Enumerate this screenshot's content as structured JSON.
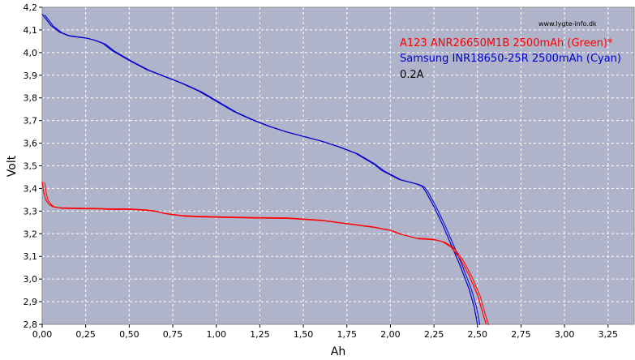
{
  "chart_data": {
    "type": "line",
    "xlabel": "Ah",
    "ylabel": "Volt",
    "xlim": [
      0,
      3.4
    ],
    "ylim": [
      2.8,
      4.2
    ],
    "xticks": [
      0.0,
      0.25,
      0.5,
      0.75,
      1.0,
      1.25,
      1.5,
      1.75,
      2.0,
      2.25,
      2.5,
      2.75,
      3.0,
      3.25
    ],
    "xtick_labels": [
      "0,00",
      "0,25",
      "0,50",
      "0,75",
      "1,00",
      "1,25",
      "1,50",
      "1,75",
      "2,00",
      "2,25",
      "2,50",
      "2,75",
      "3,00",
      "3,25"
    ],
    "yticks": [
      2.8,
      2.9,
      3.0,
      3.1,
      3.2,
      3.3,
      3.4,
      3.5,
      3.6,
      3.7,
      3.8,
      3.9,
      4.0,
      4.1,
      4.2
    ],
    "ytick_labels": [
      "2,8",
      "2,9",
      "3,0",
      "3,1",
      "3,2",
      "3,3",
      "3,4",
      "3,5",
      "3,6",
      "3,7",
      "3,8",
      "3,9",
      "4,0",
      "4,1",
      "4,2"
    ],
    "grid": true,
    "background": "#b0b4ca",
    "watermark": "www.lygte-info.dk",
    "legend": [
      {
        "text": "A123 ANR26650M1B 2500mAh (Green)*",
        "color": "#ff0000"
      },
      {
        "text": "Samsung INR18650-25R 2500mAh (Cyan)",
        "color": "#0000cc"
      },
      {
        "text": "0.2A",
        "color": "#000000"
      }
    ],
    "series": [
      {
        "color": "#0000cc",
        "points": [
          [
            0.0,
            4.17
          ],
          [
            0.02,
            4.15
          ],
          [
            0.05,
            4.12
          ],
          [
            0.1,
            4.09
          ],
          [
            0.15,
            4.075
          ],
          [
            0.2,
            4.07
          ],
          [
            0.25,
            4.065
          ],
          [
            0.3,
            4.055
          ],
          [
            0.35,
            4.04
          ],
          [
            0.4,
            4.01
          ],
          [
            0.5,
            3.965
          ],
          [
            0.6,
            3.925
          ],
          [
            0.7,
            3.895
          ],
          [
            0.8,
            3.865
          ],
          [
            0.9,
            3.83
          ],
          [
            1.0,
            3.785
          ],
          [
            1.1,
            3.74
          ],
          [
            1.2,
            3.705
          ],
          [
            1.3,
            3.675
          ],
          [
            1.4,
            3.65
          ],
          [
            1.5,
            3.63
          ],
          [
            1.6,
            3.61
          ],
          [
            1.7,
            3.585
          ],
          [
            1.8,
            3.555
          ],
          [
            1.9,
            3.51
          ],
          [
            1.95,
            3.48
          ],
          [
            2.0,
            3.46
          ],
          [
            2.05,
            3.44
          ],
          [
            2.1,
            3.43
          ],
          [
            2.15,
            3.42
          ],
          [
            2.18,
            3.41
          ],
          [
            2.2,
            3.39
          ],
          [
            2.25,
            3.32
          ],
          [
            2.3,
            3.24
          ],
          [
            2.35,
            3.15
          ],
          [
            2.4,
            3.06
          ],
          [
            2.45,
            2.96
          ],
          [
            2.48,
            2.88
          ],
          [
            2.5,
            2.8
          ]
        ]
      },
      {
        "color": "#ff0000",
        "points": [
          [
            0.0,
            3.43
          ],
          [
            0.01,
            3.38
          ],
          [
            0.02,
            3.35
          ],
          [
            0.04,
            3.33
          ],
          [
            0.06,
            3.32
          ],
          [
            0.1,
            3.315
          ],
          [
            0.2,
            3.313
          ],
          [
            0.3,
            3.312
          ],
          [
            0.4,
            3.31
          ],
          [
            0.5,
            3.31
          ],
          [
            0.6,
            3.305
          ],
          [
            0.65,
            3.3
          ],
          [
            0.7,
            3.29
          ],
          [
            0.75,
            3.285
          ],
          [
            0.8,
            3.28
          ],
          [
            0.9,
            3.277
          ],
          [
            1.0,
            3.275
          ],
          [
            1.2,
            3.272
          ],
          [
            1.4,
            3.27
          ],
          [
            1.5,
            3.265
          ],
          [
            1.6,
            3.26
          ],
          [
            1.7,
            3.25
          ],
          [
            1.8,
            3.24
          ],
          [
            1.9,
            3.23
          ],
          [
            2.0,
            3.215
          ],
          [
            2.05,
            3.2
          ],
          [
            2.1,
            3.19
          ],
          [
            2.15,
            3.18
          ],
          [
            2.2,
            3.178
          ],
          [
            2.25,
            3.175
          ],
          [
            2.3,
            3.165
          ],
          [
            2.35,
            3.14
          ],
          [
            2.4,
            3.09
          ],
          [
            2.45,
            3.02
          ],
          [
            2.5,
            2.93
          ],
          [
            2.53,
            2.85
          ],
          [
            2.55,
            2.8
          ]
        ]
      }
    ]
  }
}
